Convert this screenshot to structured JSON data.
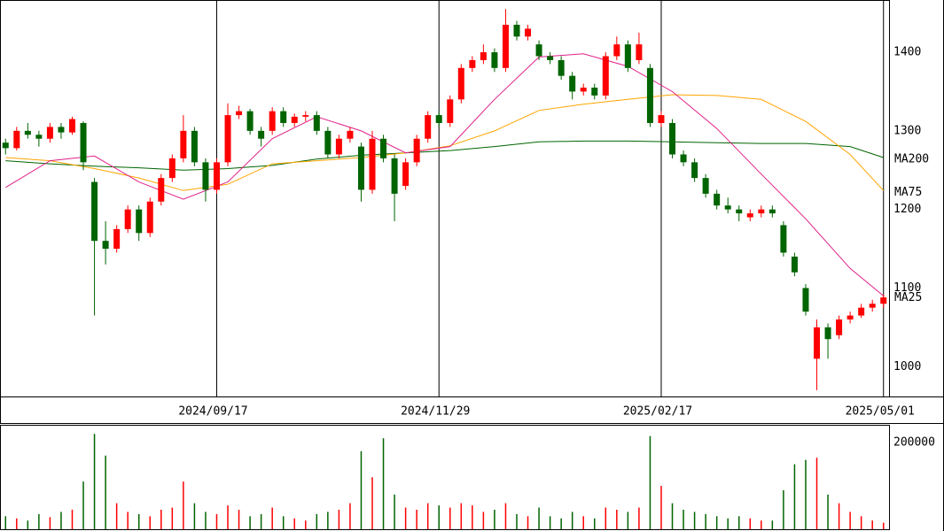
{
  "chart_data": {
    "type": "candlestick",
    "categories": [
      null,
      null,
      null,
      null,
      null,
      null,
      null,
      null,
      null,
      null,
      null,
      null,
      null,
      null,
      null,
      null,
      null,
      null,
      null,
      "2024/09/17",
      null,
      null,
      null,
      null,
      null,
      null,
      null,
      null,
      null,
      null,
      null,
      null,
      null,
      null,
      null,
      null,
      null,
      null,
      null,
      "2024/11/29",
      null,
      null,
      null,
      null,
      null,
      null,
      null,
      null,
      null,
      null,
      null,
      null,
      null,
      null,
      null,
      null,
      null,
      null,
      null,
      "2025/02/17",
      null,
      null,
      null,
      null,
      null,
      null,
      null,
      null,
      null,
      null,
      null,
      null,
      null,
      null,
      null,
      null,
      null,
      null,
      null,
      "2025/05/01"
    ],
    "open": [
      1285,
      1278,
      1300,
      1295,
      1290,
      1305,
      1298,
      1310,
      1235,
      1160,
      1150,
      1175,
      1200,
      1170,
      1210,
      1240,
      1265,
      1300,
      1260,
      1225,
      1260,
      1320,
      1325,
      1300,
      1300,
      1325,
      1310,
      1318,
      1320,
      1300,
      1270,
      1290,
      1280,
      1225,
      1290,
      1265,
      1230,
      1260,
      1290,
      1320,
      1310,
      1340,
      1380,
      1390,
      1400,
      1380,
      1435,
      1420,
      1410,
      1395,
      1390,
      1370,
      1350,
      1355,
      1345,
      1395,
      1410,
      1390,
      1380,
      1310,
      1310,
      1270,
      1260,
      1240,
      1220,
      1205,
      1200,
      1190,
      1195,
      1200,
      1180,
      1140,
      1100,
      1010,
      1050,
      1040,
      1060,
      1065,
      1075,
      1080
    ],
    "high": [
      1290,
      1305,
      1310,
      1300,
      1310,
      1310,
      1318,
      1312,
      1240,
      1185,
      1180,
      1205,
      1205,
      1215,
      1245,
      1270,
      1320,
      1305,
      1265,
      1265,
      1335,
      1332,
      1328,
      1305,
      1330,
      1330,
      1322,
      1325,
      1325,
      1305,
      1295,
      1305,
      1285,
      1300,
      1295,
      1270,
      1265,
      1295,
      1325,
      1325,
      1345,
      1385,
      1395,
      1410,
      1405,
      1455,
      1440,
      1435,
      1415,
      1400,
      1395,
      1375,
      1360,
      1360,
      1400,
      1420,
      1415,
      1425,
      1385,
      1325,
      1315,
      1275,
      1265,
      1245,
      1225,
      1215,
      1205,
      1200,
      1205,
      1205,
      1185,
      1145,
      1105,
      1060,
      1055,
      1065,
      1070,
      1080,
      1085,
      1092
    ],
    "low": [
      1270,
      1275,
      1290,
      1280,
      1285,
      1290,
      1295,
      1250,
      1065,
      1130,
      1145,
      1170,
      1160,
      1165,
      1205,
      1235,
      1260,
      1255,
      1210,
      1220,
      1255,
      1315,
      1295,
      1280,
      1295,
      1305,
      1305,
      1312,
      1295,
      1265,
      1265,
      1285,
      1210,
      1220,
      1260,
      1185,
      1225,
      1255,
      1285,
      1305,
      1305,
      1335,
      1375,
      1385,
      1375,
      1375,
      1415,
      1415,
      1390,
      1385,
      1365,
      1340,
      1345,
      1340,
      1340,
      1390,
      1375,
      1385,
      1305,
      1305,
      1265,
      1255,
      1235,
      1215,
      1200,
      1195,
      1185,
      1185,
      1190,
      1190,
      1140,
      1115,
      1065,
      970,
      1010,
      1035,
      1055,
      1062,
      1070,
      1075
    ],
    "close": [
      1278,
      1300,
      1295,
      1290,
      1305,
      1298,
      1315,
      1260,
      1160,
      1150,
      1175,
      1200,
      1170,
      1210,
      1240,
      1265,
      1300,
      1260,
      1225,
      1260,
      1320,
      1325,
      1300,
      1290,
      1325,
      1310,
      1318,
      1320,
      1300,
      1270,
      1290,
      1300,
      1225,
      1290,
      1265,
      1220,
      1260,
      1290,
      1320,
      1310,
      1340,
      1380,
      1390,
      1400,
      1380,
      1435,
      1420,
      1430,
      1395,
      1390,
      1370,
      1350,
      1355,
      1345,
      1395,
      1410,
      1380,
      1410,
      1310,
      1320,
      1270,
      1260,
      1240,
      1220,
      1205,
      1200,
      1195,
      1195,
      1200,
      1195,
      1145,
      1120,
      1070,
      1050,
      1035,
      1060,
      1065,
      1075,
      1080,
      1088
    ],
    "volume": [
      30000,
      25000,
      20000,
      35000,
      28000,
      40000,
      45000,
      110000,
      220000,
      170000,
      60000,
      40000,
      35000,
      30000,
      45000,
      50000,
      110000,
      60000,
      40000,
      35000,
      55000,
      45000,
      30000,
      35000,
      50000,
      30000,
      25000,
      20000,
      35000,
      40000,
      45000,
      60000,
      180000,
      120000,
      210000,
      80000,
      50000,
      45000,
      60000,
      55000,
      50000,
      60000,
      55000,
      40000,
      45000,
      60000,
      35000,
      30000,
      50000,
      30000,
      25000,
      40000,
      30000,
      25000,
      50000,
      45000,
      40000,
      50000,
      215000,
      100000,
      60000,
      45000,
      40000,
      35000,
      30000,
      25000,
      30000,
      25000,
      20000,
      20000,
      90000,
      150000,
      160000,
      165000,
      80000,
      60000,
      40000,
      30000,
      20000,
      15000
    ],
    "up_color": "#ff0000",
    "down_color": "#006400",
    "moving_averages": [
      {
        "name": "MA200",
        "color": "#006400",
        "x": [
          0,
          4,
          8,
          12,
          16,
          20,
          24,
          28,
          32,
          36,
          40,
          44,
          48,
          52,
          56,
          60,
          64,
          68,
          72,
          76,
          79
        ],
        "values": [
          1262,
          1258,
          1255,
          1253,
          1250,
          1252,
          1256,
          1264,
          1269,
          1272,
          1275,
          1280,
          1286,
          1287,
          1287,
          1286,
          1285,
          1284,
          1284,
          1280,
          1266
        ]
      },
      {
        "name": "MA75",
        "color": "#ffa500",
        "x": [
          0,
          4,
          8,
          12,
          16,
          20,
          24,
          28,
          32,
          36,
          40,
          44,
          48,
          52,
          56,
          60,
          64,
          68,
          72,
          76,
          79
        ],
        "values": [
          1266,
          1262,
          1252,
          1240,
          1224,
          1232,
          1258,
          1262,
          1266,
          1272,
          1281,
          1300,
          1326,
          1334,
          1340,
          1346,
          1345,
          1340,
          1312,
          1270,
          1224
        ]
      },
      {
        "name": "MA25",
        "color": "#e0208a",
        "x": [
          0,
          4,
          8,
          12,
          16,
          20,
          24,
          28,
          32,
          36,
          40,
          44,
          48,
          52,
          56,
          60,
          64,
          68,
          72,
          76,
          79
        ],
        "values": [
          1228,
          1262,
          1268,
          1235,
          1213,
          1235,
          1290,
          1318,
          1300,
          1272,
          1280,
          1340,
          1394,
          1398,
          1382,
          1350,
          1303,
          1245,
          1188,
          1125,
          1090
        ]
      }
    ],
    "ylim": [
      962,
      1466.5
    ],
    "yticks": [
      1000,
      1100,
      1200,
      1300,
      1400
    ],
    "volume_ylim": [
      0,
      241000
    ],
    "volume_yticks": [
      200000
    ],
    "grid": true
  }
}
